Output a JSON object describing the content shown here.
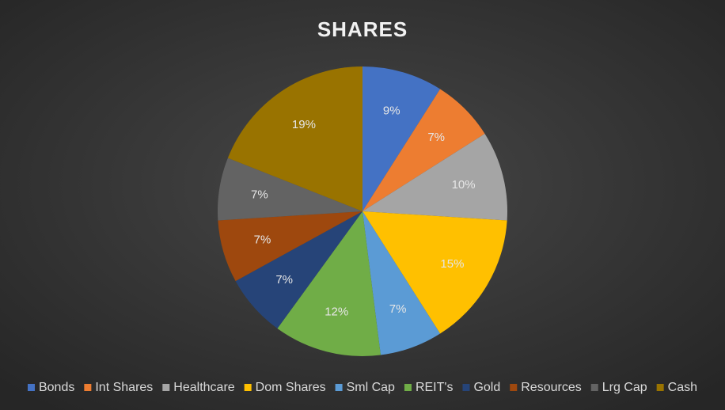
{
  "chart_data": {
    "type": "pie",
    "title": "SHARES",
    "categories": [
      "Bonds",
      "Int Shares",
      "Healthcare",
      "Dom Shares",
      "Sml Cap",
      "REIT's",
      "Gold",
      "Resources",
      "Lrg Cap",
      "Cash"
    ],
    "values": [
      9,
      7,
      10,
      15,
      7,
      12,
      7,
      7,
      7,
      19
    ],
    "value_labels": [
      "9%",
      "7%",
      "10%",
      "15%",
      "7%",
      "12%",
      "7%",
      "7%",
      "7%",
      "19%"
    ],
    "colors": [
      "#4472c4",
      "#ed7d31",
      "#a5a5a5",
      "#ffc000",
      "#5b9bd5",
      "#70ad47",
      "#264478",
      "#9e480e",
      "#636363",
      "#997300"
    ],
    "legend": "bottom"
  }
}
